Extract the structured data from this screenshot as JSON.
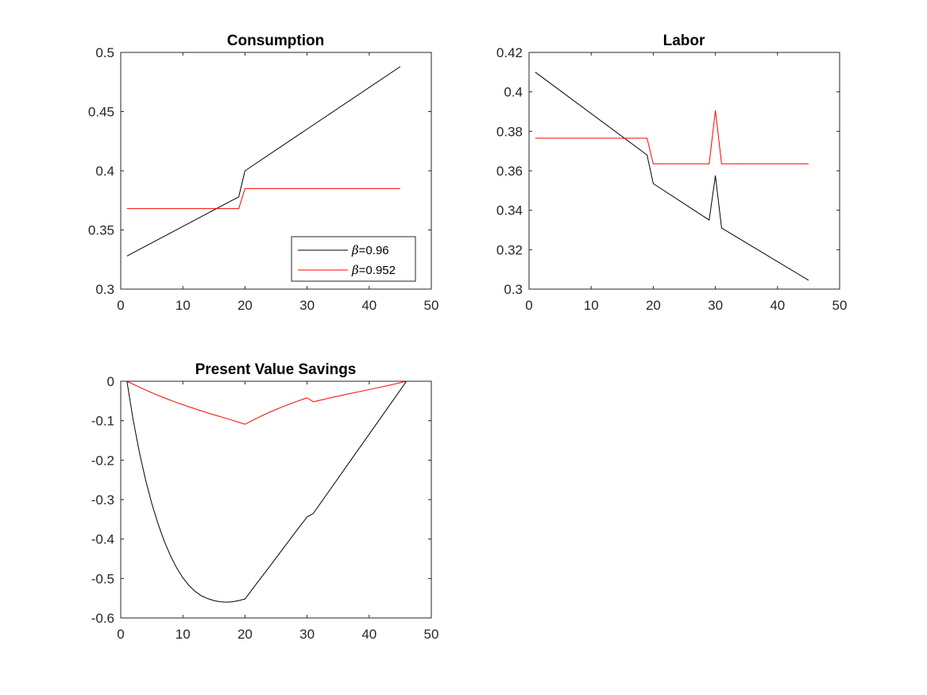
{
  "colors": {
    "series_1": "#000000",
    "series_2": "#ff0000",
    "axis": "#262626"
  },
  "chart_data": [
    {
      "type": "line",
      "title": "Consumption",
      "xlim": [
        0,
        50
      ],
      "ylim": [
        0.3,
        0.5
      ],
      "xticks": [
        0,
        10,
        20,
        30,
        40,
        50
      ],
      "xtick_labels": [
        "0",
        "10",
        "20",
        "30",
        "40",
        "50"
      ],
      "yticks": [
        0.3,
        0.35,
        0.4,
        0.45,
        0.5
      ],
      "ytick_labels": [
        "0.3",
        "0.35",
        "0.4",
        "0.45",
        "0.5"
      ],
      "legend": {
        "position": "bottom-right",
        "entries": [
          {
            "symbol": "β",
            "text": "=0.96",
            "color": "#000000"
          },
          {
            "symbol": "β",
            "text": "=0.952",
            "color": "#ff0000"
          }
        ]
      },
      "series": [
        {
          "color": "#000000",
          "x": [
            1,
            19,
            20,
            45
          ],
          "y": [
            0.328,
            0.378,
            0.4,
            0.488
          ]
        },
        {
          "color": "#ff0000",
          "x": [
            1,
            19,
            20,
            45
          ],
          "y": [
            0.368,
            0.368,
            0.385,
            0.385
          ]
        }
      ]
    },
    {
      "type": "line",
      "title": "Labor",
      "xlim": [
        0,
        50
      ],
      "ylim": [
        0.3,
        0.42
      ],
      "xticks": [
        0,
        10,
        20,
        30,
        40,
        50
      ],
      "xtick_labels": [
        "0",
        "10",
        "20",
        "30",
        "40",
        "50"
      ],
      "yticks": [
        0.3,
        0.32,
        0.34,
        0.36,
        0.38,
        0.4,
        0.42
      ],
      "ytick_labels": [
        "0.3",
        "0.32",
        "0.34",
        "0.36",
        "0.38",
        "0.4",
        "0.42"
      ],
      "series": [
        {
          "color": "#000000",
          "x": [
            1,
            19,
            20,
            29,
            30,
            31,
            45
          ],
          "y": [
            0.41,
            0.368,
            0.3535,
            0.335,
            0.3575,
            0.331,
            0.3045
          ]
        },
        {
          "color": "#ff0000",
          "x": [
            1,
            19,
            20,
            29,
            30,
            31,
            45
          ],
          "y": [
            0.3765,
            0.3765,
            0.3635,
            0.3635,
            0.3905,
            0.3635,
            0.3635
          ]
        }
      ]
    },
    {
      "type": "line",
      "title": "Present Value Savings",
      "xlim": [
        0,
        50
      ],
      "ylim": [
        -0.6,
        0
      ],
      "xticks": [
        0,
        10,
        20,
        30,
        40,
        50
      ],
      "xtick_labels": [
        "0",
        "10",
        "20",
        "30",
        "40",
        "50"
      ],
      "yticks": [
        -0.6,
        -0.5,
        -0.4,
        -0.3,
        -0.2,
        -0.1,
        0
      ],
      "ytick_labels": [
        "-0.6",
        "-0.5",
        "-0.4",
        "-0.3",
        "-0.2",
        "-0.1",
        "0"
      ],
      "series": [
        {
          "color": "#000000",
          "x": [
            1,
            2,
            3,
            4,
            5,
            6,
            7,
            8,
            9,
            10,
            11,
            12,
            13,
            14,
            15,
            16,
            17,
            18,
            19,
            20,
            22,
            24,
            26,
            28,
            30,
            31,
            34,
            37,
            40,
            43,
            46
          ],
          "y": [
            0,
            -0.098,
            -0.18,
            -0.25,
            -0.31,
            -0.361,
            -0.405,
            -0.442,
            -0.473,
            -0.498,
            -0.518,
            -0.533,
            -0.544,
            -0.551,
            -0.556,
            -0.559,
            -0.56,
            -0.559,
            -0.556,
            -0.552,
            -0.51,
            -0.469,
            -0.427,
            -0.385,
            -0.344,
            -0.335,
            -0.268,
            -0.201,
            -0.134,
            -0.067,
            0
          ]
        },
        {
          "color": "#ff0000",
          "x": [
            1,
            3,
            5,
            7,
            9,
            11,
            13,
            15,
            17,
            20,
            22,
            24,
            26,
            28,
            30,
            31,
            34,
            37,
            40,
            43,
            46
          ],
          "y": [
            0,
            -0.015,
            -0.029,
            -0.042,
            -0.054,
            -0.065,
            -0.075,
            -0.085,
            -0.094,
            -0.109,
            -0.093,
            -0.078,
            -0.065,
            -0.053,
            -0.042,
            -0.052,
            -0.041,
            -0.031,
            -0.021,
            -0.011,
            0
          ]
        }
      ]
    }
  ]
}
